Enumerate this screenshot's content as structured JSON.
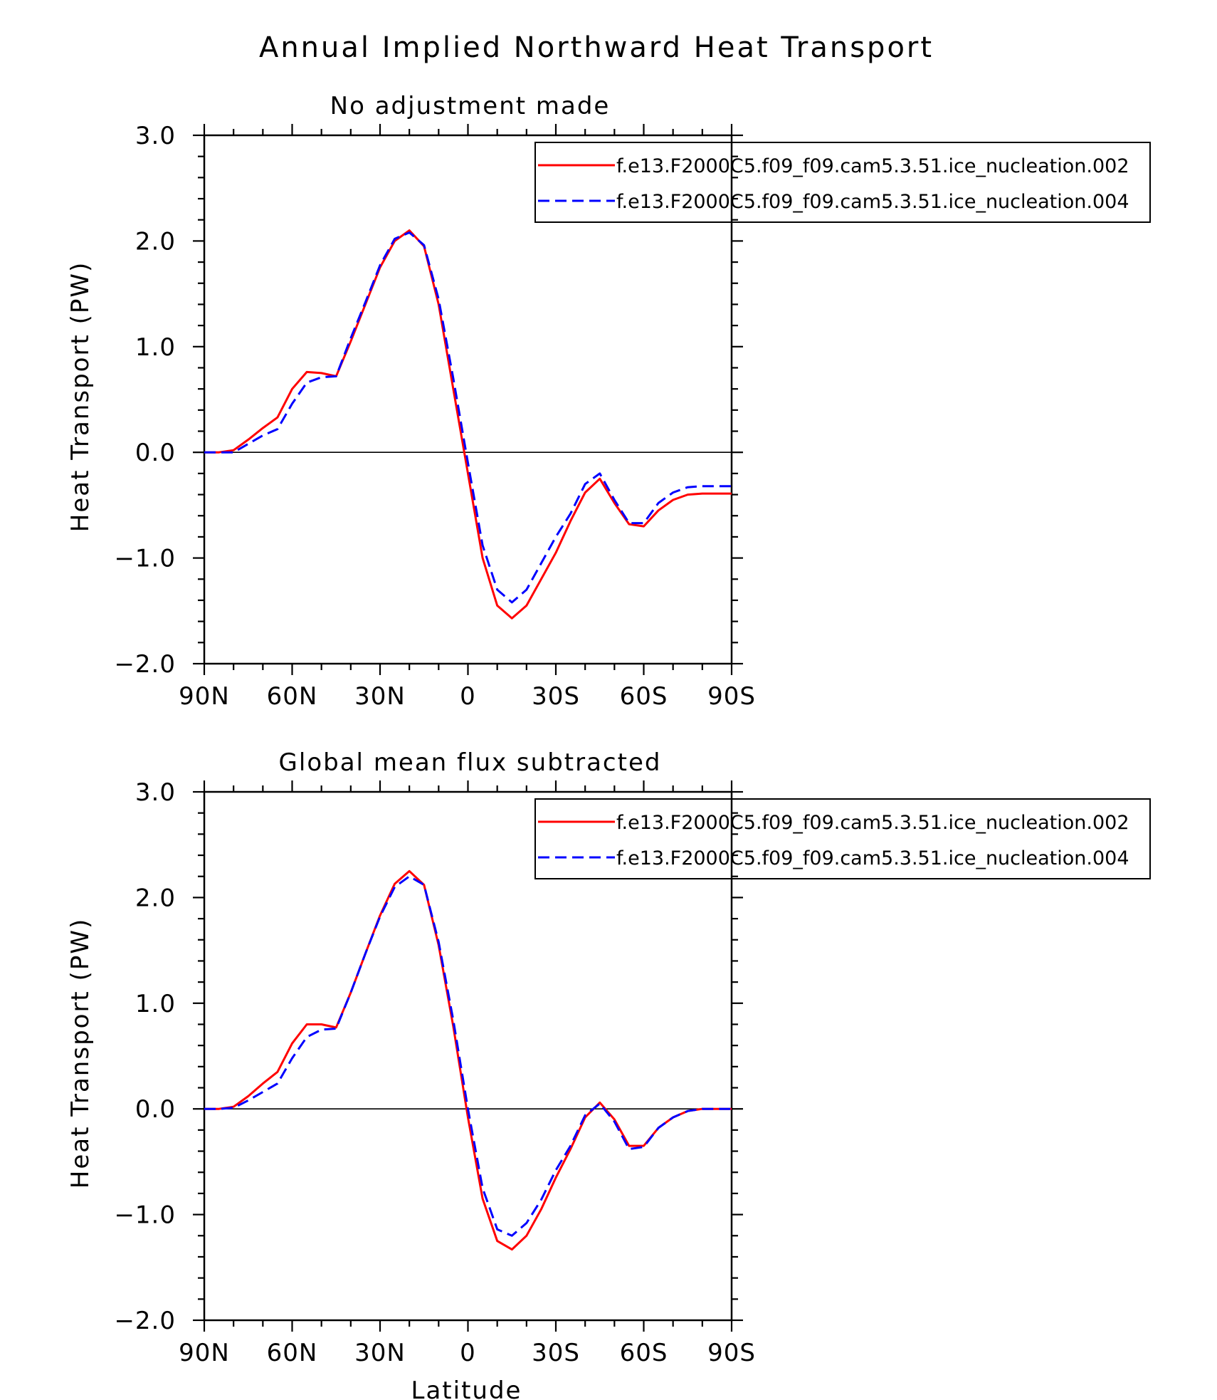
{
  "figure_title": "Annual Implied Northward Heat Transport",
  "colors": {
    "run1": "#ff0000",
    "run2": "#0000ff",
    "axis": "#000000"
  },
  "chart_data": [
    {
      "type": "line",
      "title": "No adjustment made",
      "xlabel": "",
      "ylabel": "Heat Transport (PW)",
      "xlim": [
        90,
        -90
      ],
      "ylim": [
        -2.0,
        3.0
      ],
      "x_tick_values": [
        90,
        60,
        30,
        0,
        -30,
        -60,
        -90
      ],
      "x_tick_labels": [
        "90N",
        "60N",
        "30N",
        "0",
        "30S",
        "60S",
        "90S"
      ],
      "y_tick_values": [
        -2.0,
        -1.0,
        0.0,
        1.0,
        2.0,
        3.0
      ],
      "y_tick_labels": [
        "−2.0",
        "−1.0",
        "0.0",
        "1.0",
        "2.0",
        "3.0"
      ],
      "zero_line": true,
      "legend_position": "top-right",
      "x": [
        90,
        85,
        80,
        75,
        70,
        65,
        60,
        55,
        50,
        45,
        40,
        35,
        30,
        25,
        20,
        15,
        10,
        5,
        0,
        -5,
        -10,
        -15,
        -20,
        -25,
        -30,
        -35,
        -40,
        -45,
        -50,
        -55,
        -60,
        -65,
        -70,
        -75,
        -80,
        -85,
        -90
      ],
      "series": [
        {
          "name": "f.e13.F2000C5.f09_f09.cam5.3.51.ice_nucleation.002",
          "style": "solid",
          "values": [
            0.0,
            0.0,
            0.02,
            0.12,
            0.23,
            0.33,
            0.6,
            0.76,
            0.75,
            0.72,
            1.05,
            1.4,
            1.75,
            2.0,
            2.1,
            1.95,
            1.4,
            0.6,
            -0.2,
            -1.0,
            -1.45,
            -1.57,
            -1.45,
            -1.2,
            -0.95,
            -0.65,
            -0.38,
            -0.25,
            -0.48,
            -0.68,
            -0.7,
            -0.55,
            -0.45,
            -0.4,
            -0.39,
            -0.39,
            -0.39
          ]
        },
        {
          "name": "f.e13.F2000C5.f09_f09.cam5.3.51.ice_nucleation.004",
          "style": "dashed",
          "values": [
            0.0,
            0.0,
            0.0,
            0.08,
            0.16,
            0.22,
            0.46,
            0.66,
            0.71,
            0.72,
            1.08,
            1.42,
            1.77,
            2.02,
            2.08,
            1.96,
            1.45,
            0.7,
            -0.1,
            -0.88,
            -1.3,
            -1.42,
            -1.3,
            -1.05,
            -0.8,
            -0.58,
            -0.3,
            -0.2,
            -0.45,
            -0.67,
            -0.67,
            -0.48,
            -0.38,
            -0.33,
            -0.32,
            -0.32,
            -0.32
          ]
        }
      ]
    },
    {
      "type": "line",
      "title": "Global mean flux subtracted",
      "xlabel": "Latitude",
      "ylabel": "Heat Transport (PW)",
      "xlim": [
        90,
        -90
      ],
      "ylim": [
        -2.0,
        3.0
      ],
      "x_tick_values": [
        90,
        60,
        30,
        0,
        -30,
        -60,
        -90
      ],
      "x_tick_labels": [
        "90N",
        "60N",
        "30N",
        "0",
        "30S",
        "60S",
        "90S"
      ],
      "y_tick_values": [
        -2.0,
        -1.0,
        0.0,
        1.0,
        2.0,
        3.0
      ],
      "y_tick_labels": [
        "−2.0",
        "−1.0",
        "0.0",
        "1.0",
        "2.0",
        "3.0"
      ],
      "zero_line": true,
      "legend_position": "top-right",
      "x": [
        90,
        85,
        80,
        75,
        70,
        65,
        60,
        55,
        50,
        45,
        40,
        35,
        30,
        25,
        20,
        15,
        10,
        5,
        0,
        -5,
        -10,
        -15,
        -20,
        -25,
        -30,
        -35,
        -40,
        -45,
        -50,
        -55,
        -60,
        -65,
        -70,
        -75,
        -80,
        -85,
        -90
      ],
      "series": [
        {
          "name": "f.e13.F2000C5.f09_f09.cam5.3.51.ice_nucleation.002",
          "style": "solid",
          "values": [
            0.0,
            0.0,
            0.02,
            0.12,
            0.24,
            0.35,
            0.62,
            0.8,
            0.8,
            0.77,
            1.1,
            1.47,
            1.83,
            2.13,
            2.25,
            2.12,
            1.55,
            0.78,
            -0.08,
            -0.85,
            -1.25,
            -1.33,
            -1.2,
            -0.95,
            -0.65,
            -0.38,
            -0.08,
            0.06,
            -0.1,
            -0.35,
            -0.35,
            -0.18,
            -0.08,
            -0.02,
            0.0,
            0.0,
            0.0
          ]
        },
        {
          "name": "f.e13.F2000C5.f09_f09.cam5.3.51.ice_nucleation.004",
          "style": "dashed",
          "values": [
            0.0,
            0.0,
            0.01,
            0.08,
            0.16,
            0.24,
            0.48,
            0.68,
            0.75,
            0.76,
            1.1,
            1.47,
            1.82,
            2.1,
            2.2,
            2.12,
            1.58,
            0.84,
            0.0,
            -0.75,
            -1.14,
            -1.2,
            -1.08,
            -0.86,
            -0.58,
            -0.35,
            -0.06,
            0.05,
            -0.12,
            -0.38,
            -0.36,
            -0.18,
            -0.08,
            -0.02,
            0.0,
            0.0,
            0.0
          ]
        }
      ]
    }
  ]
}
